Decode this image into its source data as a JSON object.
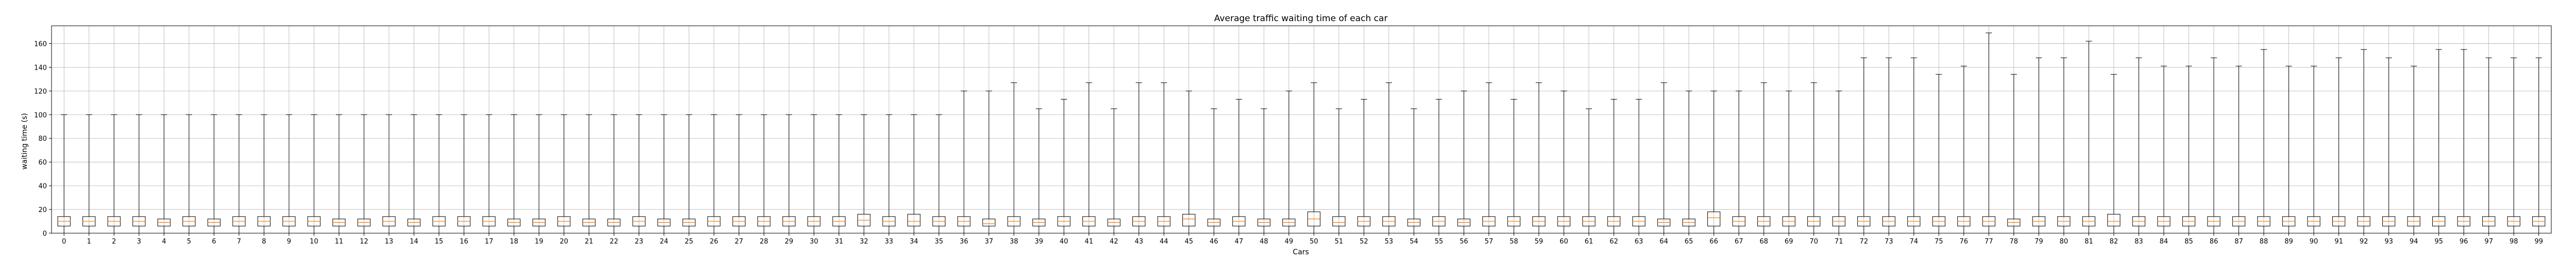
{
  "chart_data": {
    "type": "box",
    "title": "Average traffic waiting time of each car",
    "xlabel": "Cars",
    "ylabel": "waiting time (s)",
    "ylim": [
      0,
      175
    ],
    "y_ticks": [
      0,
      20,
      40,
      60,
      80,
      100,
      120,
      140,
      160
    ],
    "grid": true,
    "colors": {
      "box": "#000000",
      "median": "#ff7f0e",
      "grid": "#b0b0b0"
    },
    "categories": [
      "0",
      "1",
      "2",
      "3",
      "4",
      "5",
      "6",
      "7",
      "8",
      "9",
      "10",
      "11",
      "12",
      "13",
      "14",
      "15",
      "16",
      "17",
      "18",
      "19",
      "20",
      "21",
      "22",
      "23",
      "24",
      "25",
      "26",
      "27",
      "28",
      "29",
      "30",
      "31",
      "32",
      "33",
      "34",
      "35",
      "36",
      "37",
      "38",
      "39",
      "40",
      "41",
      "42",
      "43",
      "44",
      "45",
      "46",
      "47",
      "48",
      "49",
      "50",
      "51",
      "52",
      "53",
      "54",
      "55",
      "56",
      "57",
      "58",
      "59",
      "60",
      "61",
      "62",
      "63",
      "64",
      "65",
      "66",
      "67",
      "68",
      "69",
      "70",
      "71",
      "72",
      "73",
      "74",
      "75",
      "76",
      "77",
      "78",
      "79",
      "80",
      "81",
      "82",
      "83",
      "84",
      "85",
      "86",
      "87",
      "88",
      "89",
      "90",
      "91",
      "92",
      "93",
      "94",
      "95",
      "96",
      "97",
      "98",
      "99"
    ],
    "whisker_high": [
      100,
      100,
      100,
      100,
      100,
      100,
      100,
      100,
      100,
      100,
      100,
      100,
      100,
      100,
      100,
      100,
      100,
      100,
      100,
      100,
      100,
      100,
      100,
      100,
      100,
      100,
      100,
      100,
      100,
      100,
      100,
      100,
      100,
      100,
      100,
      100,
      120,
      120,
      127,
      105,
      113,
      127,
      105,
      127,
      127,
      120,
      105,
      113,
      105,
      120,
      127,
      105,
      113,
      127,
      105,
      113,
      120,
      127,
      113,
      127,
      120,
      105,
      113,
      113,
      127,
      120,
      120,
      120,
      127,
      120,
      127,
      120,
      148,
      148,
      148,
      134,
      141,
      169,
      134,
      148,
      148,
      162,
      134,
      148,
      141,
      141,
      148,
      141,
      155,
      141,
      141,
      148,
      155,
      148,
      141,
      155,
      155,
      148,
      148,
      148
    ],
    "q1": [
      6,
      6,
      6,
      6,
      6,
      6,
      6,
      6,
      6,
      6,
      6,
      6,
      6,
      6,
      6,
      6,
      6,
      6,
      6,
      6,
      6,
      6,
      6,
      6,
      6,
      6,
      6,
      6,
      6,
      6,
      6,
      6,
      6,
      6,
      6,
      6,
      6,
      6,
      6,
      6,
      6,
      6,
      6,
      6,
      6,
      6,
      6,
      6,
      6,
      6,
      6,
      6,
      6,
      6,
      6,
      6,
      6,
      6,
      6,
      6,
      6,
      6,
      6,
      6,
      6,
      6,
      6,
      6,
      6,
      6,
      6,
      6,
      6,
      6,
      6,
      6,
      6,
      6,
      6,
      6,
      6,
      6,
      6,
      6,
      6,
      6,
      6,
      6,
      6,
      6,
      6,
      6,
      6,
      6,
      6,
      6,
      6,
      6,
      6,
      6
    ],
    "median": [
      10,
      10,
      10,
      10,
      9,
      10,
      9,
      10,
      10,
      10,
      10,
      9,
      9,
      10,
      9,
      10,
      10,
      10,
      9,
      9,
      10,
      9,
      9,
      10,
      9,
      9,
      10,
      10,
      10,
      10,
      10,
      10,
      11,
      10,
      10,
      10,
      10,
      8,
      10,
      9,
      10,
      10,
      9,
      10,
      10,
      12,
      9,
      10,
      9,
      9,
      12,
      9,
      10,
      10,
      9,
      10,
      9,
      10,
      10,
      10,
      10,
      10,
      10,
      10,
      9,
      9,
      13,
      10,
      10,
      10,
      10,
      10,
      10,
      10,
      10,
      10,
      10,
      10,
      9,
      10,
      10,
      10,
      10,
      10,
      10,
      10,
      10,
      10,
      10,
      10,
      10,
      10,
      10,
      10,
      10,
      10,
      10,
      10,
      10,
      10
    ],
    "q3": [
      14,
      14,
      14,
      14,
      12,
      14,
      12,
      14,
      14,
      14,
      14,
      12,
      12,
      14,
      12,
      14,
      14,
      14,
      12,
      12,
      14,
      12,
      12,
      14,
      12,
      12,
      14,
      14,
      14,
      14,
      14,
      14,
      16,
      14,
      16,
      14,
      14,
      12,
      14,
      12,
      14,
      14,
      12,
      14,
      14,
      16,
      12,
      14,
      12,
      12,
      18,
      14,
      14,
      14,
      12,
      14,
      12,
      14,
      14,
      14,
      14,
      14,
      14,
      14,
      12,
      12,
      18,
      14,
      14,
      14,
      14,
      14,
      14,
      14,
      14,
      14,
      14,
      14,
      12,
      14,
      14,
      14,
      16,
      14,
      14,
      14,
      14,
      14,
      14,
      14,
      14,
      14,
      14,
      14,
      14,
      14,
      14,
      14,
      14,
      14
    ]
  }
}
